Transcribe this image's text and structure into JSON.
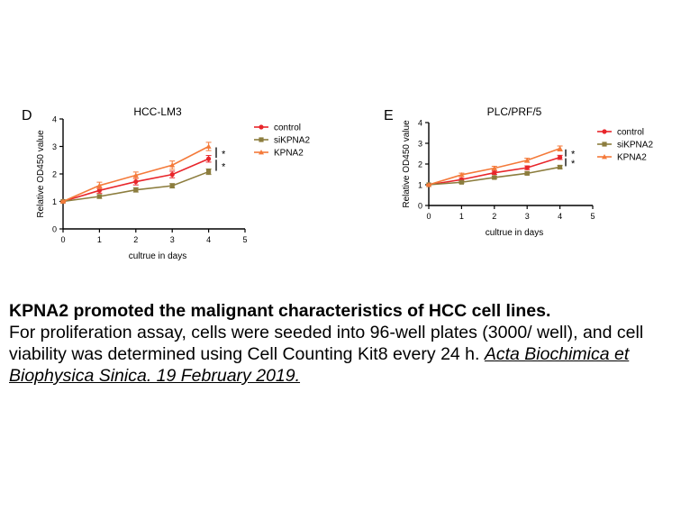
{
  "chart_data": [
    {
      "type": "line",
      "panel_label": "D",
      "title": "HCC-LM3",
      "xlabel": "cultrue in days",
      "ylabel": "Relative OD450 value",
      "xlim": [
        0,
        5
      ],
      "ylim": [
        0,
        4
      ],
      "xticks": [
        "0",
        "1",
        "2",
        "3",
        "4",
        "5"
      ],
      "yticks": [
        "0",
        "1",
        "2",
        "3",
        "4"
      ],
      "x": [
        0,
        1,
        2,
        3,
        4
      ],
      "series": [
        {
          "name": "control",
          "color": "#e8262b",
          "marker": "circle",
          "values": [
            1.0,
            1.4,
            1.72,
            1.98,
            2.55
          ],
          "errors": [
            0.02,
            0.1,
            0.12,
            0.12,
            0.12
          ]
        },
        {
          "name": "siKPNA2",
          "color": "#8c7d3e",
          "marker": "square",
          "values": [
            1.0,
            1.18,
            1.42,
            1.57,
            2.08
          ],
          "errors": [
            0.02,
            0.07,
            0.08,
            0.08,
            0.1
          ]
        },
        {
          "name": "KPNA2",
          "color": "#f47a3a",
          "marker": "triangle",
          "values": [
            1.0,
            1.58,
            1.95,
            2.32,
            3.0
          ],
          "errors": [
            0.02,
            0.12,
            0.12,
            0.15,
            0.15
          ]
        }
      ],
      "significance": [
        "*",
        "*"
      ],
      "legend": "top-right",
      "grid": false
    },
    {
      "type": "line",
      "panel_label": "E",
      "title": "PLC/PRF/5",
      "xlabel": "cultrue in days",
      "ylabel": "Relative OD450 value",
      "xlim": [
        0,
        5
      ],
      "ylim": [
        0,
        4
      ],
      "xticks": [
        "0",
        "1",
        "2",
        "3",
        "4",
        "5"
      ],
      "yticks": [
        "0",
        "1",
        "2",
        "3",
        "4"
      ],
      "x": [
        0,
        1,
        2,
        3,
        4
      ],
      "series": [
        {
          "name": "control",
          "color": "#e8262b",
          "marker": "circle",
          "values": [
            1.0,
            1.25,
            1.58,
            1.82,
            2.32
          ],
          "errors": [
            0.02,
            0.06,
            0.08,
            0.09,
            0.1
          ]
        },
        {
          "name": "siKPNA2",
          "color": "#8c7d3e",
          "marker": "square",
          "values": [
            1.0,
            1.12,
            1.35,
            1.55,
            1.85
          ],
          "errors": [
            0.02,
            0.05,
            0.06,
            0.07,
            0.08
          ]
        },
        {
          "name": "KPNA2",
          "color": "#f47a3a",
          "marker": "triangle",
          "values": [
            1.0,
            1.48,
            1.8,
            2.18,
            2.75
          ],
          "errors": [
            0.02,
            0.08,
            0.09,
            0.1,
            0.12
          ]
        }
      ],
      "significance": [
        "*",
        "*"
      ],
      "legend": "top-right",
      "grid": false
    }
  ],
  "caption": {
    "headline": "KPNA2 promoted the malignant characteristics of HCC cell lines.",
    "body": "For proliferation assay, cells were seeded into 96-well plates (3000/ well), and cell viability was determined using Cell Counting Kit8 every 24 h.",
    "citation": "Acta Biochimica et Biophysica Sinica. 19 February 2019."
  }
}
